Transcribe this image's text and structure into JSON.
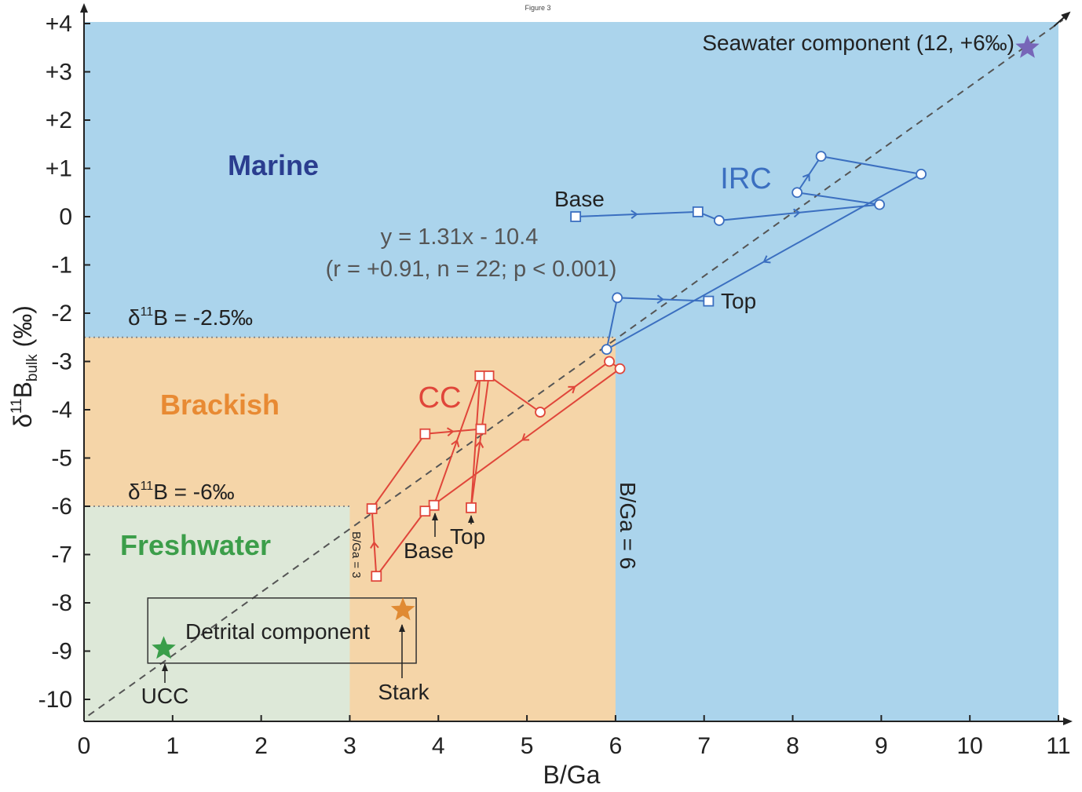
{
  "figure_label": "Figure 3",
  "chart_data": {
    "type": "scatter",
    "title": "",
    "xlabel": "B/Ga",
    "ylabel": "δ11B bulk (‰)",
    "ylabel_parts": {
      "delta": "δ",
      "superscript": "11",
      "base": "B",
      "subscript": "bulk",
      "unit": " (‰)"
    },
    "xlim": [
      0,
      11
    ],
    "ylim": [
      -10.5,
      4
    ],
    "x_ticks": [
      0,
      1,
      2,
      3,
      4,
      5,
      6,
      7,
      8,
      9,
      10,
      11
    ],
    "x_tick_labels": [
      "0",
      "1",
      "2",
      "3",
      "4",
      "5",
      "6",
      "7",
      "8",
      "9",
      "10",
      "11"
    ],
    "y_ticks": [
      4,
      3,
      2,
      1,
      0,
      -1,
      -2,
      -3,
      -4,
      -5,
      -6,
      -7,
      -8,
      -9,
      -10
    ],
    "y_tick_labels": [
      "+4",
      "+3",
      "+2",
      "+1",
      "0",
      "-1",
      "-2",
      "-3",
      "-4",
      "-5",
      "-6",
      "-7",
      "-8",
      "-9",
      "-10"
    ],
    "grid": false,
    "regions": [
      {
        "name": "Marine",
        "color": "#abd4ec",
        "label_color": "#2a3d8f"
      },
      {
        "name": "Brackish",
        "color": "#f5d5a8",
        "label_color": "#e88a33"
      },
      {
        "name": "Freshwater",
        "color": "#dde8d8",
        "label_color": "#3c9e4a"
      }
    ],
    "region_boundaries": {
      "marine_brackish_d11B": -2.5,
      "brackish_freshwater_d11B": -6,
      "brackish_BGa": 6,
      "freshwater_BGa": 3
    },
    "threshold_labels": [
      "δ11B = -2.5‰",
      "δ11B = -6‰",
      "B/Ga = 3",
      "B/Ga = 6"
    ],
    "threshold_label_parts": [
      {
        "pre": "δ",
        "sup": "11",
        "post": "B = -2.5‰"
      },
      {
        "pre": "δ",
        "sup": "11",
        "post": "B = -6‰"
      }
    ],
    "regression": {
      "slope": 1.31,
      "intercept": -10.4,
      "equation": "y = 1.31x - 10.4",
      "stats": "(r = +0.91, n = 22; p < 0.001)",
      "color": "#555555"
    },
    "series": [
      {
        "name": "IRC",
        "color": "#3b6fc0",
        "points": [
          {
            "x": 5.55,
            "y": 0.0,
            "marker": "square"
          },
          {
            "x": 6.93,
            "y": 0.1,
            "marker": "square"
          },
          {
            "x": 7.17,
            "y": -0.08,
            "marker": "circle"
          },
          {
            "x": 8.98,
            "y": 0.25,
            "marker": "circle"
          },
          {
            "x": 8.05,
            "y": 0.5,
            "marker": "circle"
          },
          {
            "x": 8.32,
            "y": 1.25,
            "marker": "circle"
          },
          {
            "x": 9.45,
            "y": 0.88,
            "marker": "circle"
          },
          {
            "x": 5.9,
            "y": -2.75,
            "marker": "circle"
          },
          {
            "x": 6.02,
            "y": -1.68,
            "marker": "circle"
          },
          {
            "x": 7.05,
            "y": -1.75,
            "marker": "square"
          }
        ]
      },
      {
        "name": "CC",
        "color": "#e0463a",
        "points": [
          {
            "x": 3.95,
            "y": -5.98,
            "marker": "square"
          },
          {
            "x": 4.47,
            "y": -3.3,
            "marker": "square"
          },
          {
            "x": 4.37,
            "y": -6.03,
            "marker": "square"
          },
          {
            "x": 4.57,
            "y": -3.3,
            "marker": "square"
          },
          {
            "x": 5.15,
            "y": -4.05,
            "marker": "circle"
          },
          {
            "x": 5.93,
            "y": -3.0,
            "marker": "circle"
          },
          {
            "x": 6.05,
            "y": -3.15,
            "marker": "circle"
          },
          {
            "x": 3.85,
            "y": -6.1,
            "marker": "square"
          },
          {
            "x": 3.3,
            "y": -7.45,
            "marker": "square"
          },
          {
            "x": 3.25,
            "y": -6.05,
            "marker": "square"
          },
          {
            "x": 3.85,
            "y": -4.5,
            "marker": "square"
          },
          {
            "x": 4.48,
            "y": -4.4,
            "marker": "square"
          }
        ]
      }
    ],
    "end_members": [
      {
        "name": "Seawater component (12, +6‰)",
        "x": 10.65,
        "y": 3.5,
        "color": "#7766b8",
        "marker": "star"
      },
      {
        "name": "UCC",
        "x": 0.9,
        "y": -8.95,
        "color": "#3a9e4a",
        "marker": "star"
      },
      {
        "name": "Stark",
        "x": 3.6,
        "y": -8.15,
        "color": "#e08a33",
        "marker": "star"
      }
    ],
    "detrital_box": {
      "label": "Detrital component",
      "x": [
        0.72,
        3.75
      ],
      "y": [
        -9.25,
        -7.9
      ]
    },
    "annotations": {
      "irc_label": "IRC",
      "irc_base": "Base",
      "irc_top": "Top",
      "cc_label": "CC",
      "cc_base": "Base",
      "cc_top": "Top",
      "ucc": "UCC",
      "stark": "Stark",
      "marine": "Marine",
      "brackish": "Brackish",
      "freshwater": "Freshwater"
    }
  }
}
